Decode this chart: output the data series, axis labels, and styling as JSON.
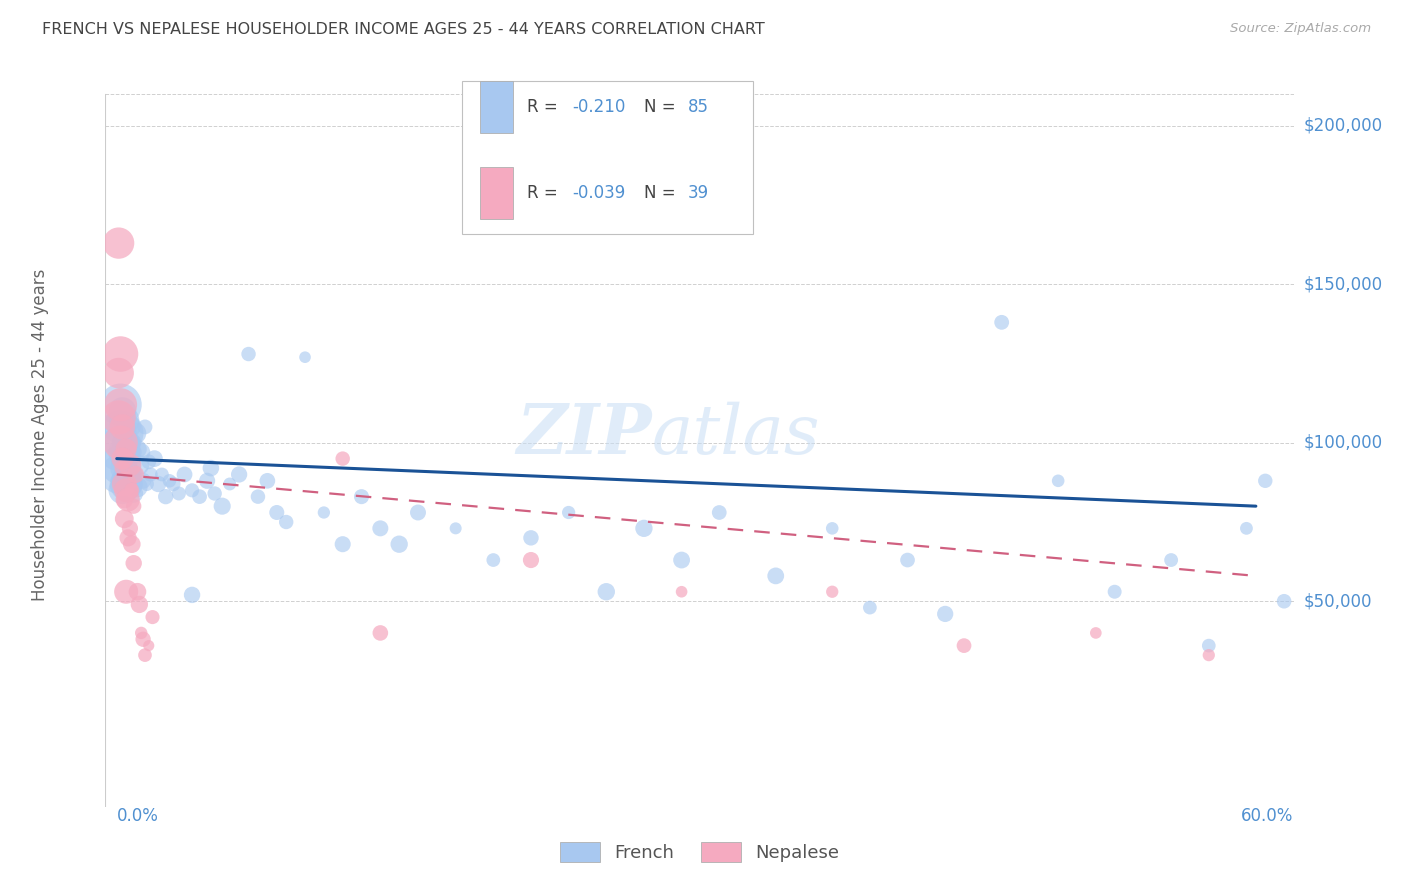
{
  "title": "FRENCH VS NEPALESE HOUSEHOLDER INCOME AGES 25 - 44 YEARS CORRELATION CHART",
  "source": "Source: ZipAtlas.com",
  "ylabel": "Householder Income Ages 25 - 44 years",
  "ytick_labels": [
    "$50,000",
    "$100,000",
    "$150,000",
    "$200,000"
  ],
  "ytick_values": [
    50000,
    100000,
    150000,
    200000
  ],
  "ylim": [
    -15000,
    220000
  ],
  "xlim": [
    -0.006,
    0.625
  ],
  "x_left_label": "0.0%",
  "x_right_label": "60.0%",
  "french_R": "-0.210",
  "french_N": "85",
  "nepalese_R": "-0.039",
  "nepalese_N": "39",
  "french_color": "#a8c8f0",
  "nepalese_color": "#f5aac0",
  "french_line_color": "#1a5296",
  "nepalese_line_color": "#d06080",
  "grid_color": "#d0d0d0",
  "title_color": "#444444",
  "label_color": "#5090d0",
  "watermark_color": "#c8def5",
  "background": "#ffffff",
  "french_line_y0": 95000,
  "french_line_y1": 80000,
  "nepalese_line_y0": 90000,
  "nepalese_line_y1": 58000,
  "french_x": [
    0.001,
    0.001,
    0.001,
    0.002,
    0.002,
    0.002,
    0.003,
    0.003,
    0.003,
    0.003,
    0.004,
    0.004,
    0.004,
    0.005,
    0.005,
    0.005,
    0.006,
    0.006,
    0.007,
    0.007,
    0.008,
    0.008,
    0.009,
    0.009,
    0.01,
    0.01,
    0.011,
    0.011,
    0.012,
    0.013,
    0.014,
    0.015,
    0.016,
    0.017,
    0.018,
    0.02,
    0.022,
    0.024,
    0.026,
    0.028,
    0.03,
    0.033,
    0.036,
    0.04,
    0.044,
    0.048,
    0.052,
    0.056,
    0.06,
    0.065,
    0.07,
    0.075,
    0.08,
    0.085,
    0.09,
    0.1,
    0.11,
    0.12,
    0.13,
    0.14,
    0.15,
    0.16,
    0.18,
    0.2,
    0.22,
    0.24,
    0.26,
    0.28,
    0.3,
    0.32,
    0.35,
    0.38,
    0.4,
    0.42,
    0.44,
    0.47,
    0.5,
    0.53,
    0.56,
    0.58,
    0.6,
    0.61,
    0.62,
    0.04,
    0.05
  ],
  "french_y": [
    105000,
    98000,
    90000,
    112000,
    103000,
    93000,
    110000,
    100000,
    92000,
    85000,
    107000,
    97000,
    88000,
    103000,
    95000,
    87000,
    100000,
    90000,
    105000,
    93000,
    100000,
    87000,
    97000,
    84000,
    103000,
    90000,
    98000,
    86000,
    93000,
    97000,
    88000,
    105000,
    87000,
    94000,
    90000,
    95000,
    87000,
    90000,
    83000,
    88000,
    87000,
    84000,
    90000,
    85000,
    83000,
    88000,
    84000,
    80000,
    87000,
    90000,
    128000,
    83000,
    88000,
    78000,
    75000,
    127000,
    78000,
    68000,
    83000,
    73000,
    68000,
    78000,
    73000,
    63000,
    70000,
    78000,
    53000,
    73000,
    63000,
    78000,
    58000,
    73000,
    48000,
    63000,
    46000,
    138000,
    88000,
    53000,
    63000,
    36000,
    73000,
    88000,
    50000,
    52000,
    92000
  ],
  "nepalese_x": [
    0.001,
    0.001,
    0.001,
    0.002,
    0.002,
    0.002,
    0.003,
    0.003,
    0.004,
    0.004,
    0.005,
    0.005,
    0.006,
    0.006,
    0.007,
    0.007,
    0.008,
    0.008,
    0.009,
    0.009,
    0.01,
    0.011,
    0.012,
    0.013,
    0.014,
    0.015,
    0.017,
    0.019,
    0.12,
    0.14,
    0.22,
    0.3,
    0.38,
    0.45,
    0.52,
    0.58,
    0.003,
    0.004,
    0.005
  ],
  "nepalese_y": [
    163000,
    122000,
    108000,
    128000,
    112000,
    100000,
    105000,
    92000,
    87000,
    76000,
    98000,
    85000,
    82000,
    70000,
    93000,
    73000,
    85000,
    68000,
    80000,
    62000,
    90000,
    53000,
    49000,
    40000,
    38000,
    33000,
    36000,
    45000,
    95000,
    40000,
    63000,
    53000,
    53000,
    36000,
    40000,
    33000,
    95000,
    82000,
    53000
  ]
}
